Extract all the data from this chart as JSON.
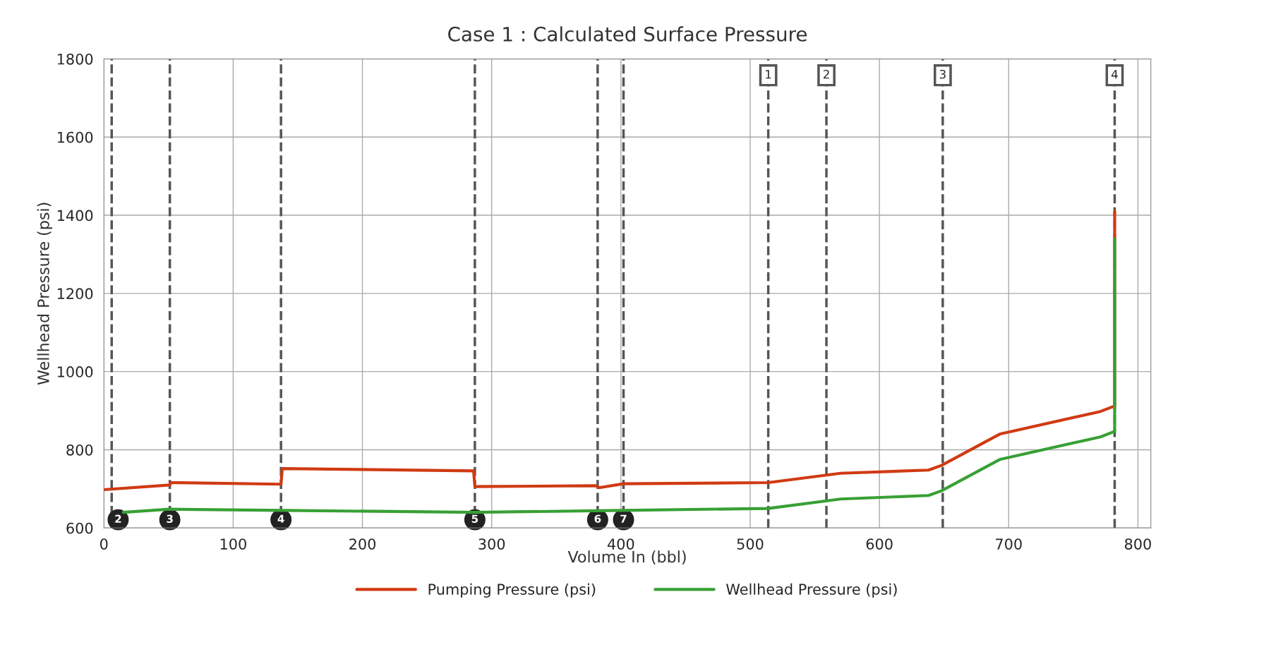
{
  "chart_data": {
    "type": "line",
    "title": "Case 1 : Calculated Surface Pressure",
    "xlabel": "Volume In (bbl)",
    "ylabel": "Wellhead Pressure (psi)",
    "xlim": [
      0,
      810
    ],
    "xticks": [
      0,
      100,
      200,
      300,
      400,
      500,
      600,
      700,
      800
    ],
    "ylim": [
      600,
      1800
    ],
    "yticks": [
      600,
      800,
      1000,
      1200,
      1400,
      1600,
      1800
    ],
    "grid": true,
    "legend": "bottom",
    "marker": "none",
    "line_style": "solid",
    "series": [
      {
        "name": "Pumping Pressure (psi)",
        "color": "#d03a12",
        "x": [
          0,
          51,
          52,
          137,
          138,
          286,
          287,
          381,
          383,
          402,
          514,
          570,
          638,
          648,
          693,
          771,
          782,
          782
        ],
        "values": [
          698,
          710,
          716,
          712,
          752,
          746,
          706,
          708,
          703,
          713,
          716,
          740,
          748,
          760,
          840,
          898,
          912,
          1410
        ]
      },
      {
        "name": "Wellhead Pressure (psi)",
        "color": "#38a035",
        "x": [
          15,
          51,
          137,
          287,
          381,
          402,
          514,
          570,
          638,
          648,
          693,
          771,
          782,
          782
        ],
        "values": [
          640,
          648,
          645,
          640,
          644,
          645,
          650,
          674,
          683,
          695,
          775,
          833,
          847,
          1340
        ]
      }
    ],
    "ref_lines": [
      {
        "axis": "x",
        "value": 6,
        "label": null,
        "color": "#555555",
        "line_style": "dashed"
      },
      {
        "axis": "x",
        "value": 51,
        "label": null,
        "color": "#555555",
        "line_style": "dashed"
      },
      {
        "axis": "x",
        "value": 137,
        "label": null,
        "color": "#555555",
        "line_style": "dashed"
      },
      {
        "axis": "x",
        "value": 287,
        "label": null,
        "color": "#555555",
        "line_style": "dashed"
      },
      {
        "axis": "x",
        "value": 382,
        "label": null,
        "color": "#555555",
        "line_style": "dashed"
      },
      {
        "axis": "x",
        "value": 402,
        "label": null,
        "color": "#555555",
        "line_style": "dashed"
      },
      {
        "axis": "x",
        "value": 514,
        "label": null,
        "color": "#555555",
        "line_style": "dashed"
      },
      {
        "axis": "x",
        "value": 559,
        "label": null,
        "color": "#555555",
        "line_style": "dashed"
      },
      {
        "axis": "x",
        "value": 649,
        "label": null,
        "color": "#555555",
        "line_style": "dashed"
      },
      {
        "axis": "x",
        "value": 782,
        "label": null,
        "color": "#555555",
        "line_style": "dashed"
      }
    ],
    "annotations": [
      {
        "text": "2",
        "x": 11,
        "y": 621
      },
      {
        "text": "3",
        "x": 51,
        "y": 621
      },
      {
        "text": "4",
        "x": 137,
        "y": 621
      },
      {
        "text": "5",
        "x": 287,
        "y": 621
      },
      {
        "text": "6",
        "x": 382,
        "y": 621
      },
      {
        "text": "7",
        "x": 402,
        "y": 621
      },
      {
        "text": "1",
        "x": 514
      },
      {
        "text": "2",
        "x": 559
      },
      {
        "text": "3",
        "x": 649
      },
      {
        "text": "4",
        "x": 782
      }
    ]
  }
}
